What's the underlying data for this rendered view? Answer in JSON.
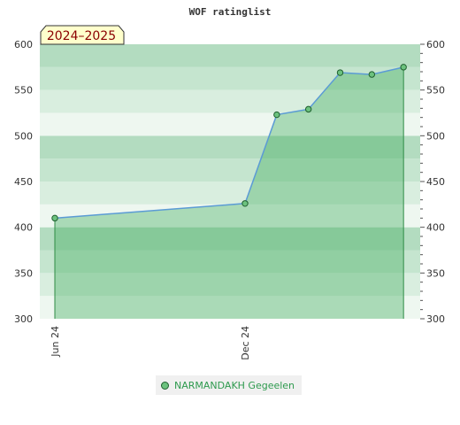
{
  "chart_data": {
    "type": "area",
    "title": "WOF ratinglist",
    "badge": "2024–2025",
    "ylim": [
      300,
      600
    ],
    "y_ticks": [
      300,
      350,
      400,
      450,
      500,
      550,
      600
    ],
    "y_tick_labels": [
      "300",
      "350",
      "400",
      "450",
      "500",
      "550",
      "600"
    ],
    "x_tick_labels": [
      "Jun 24",
      "Dec 24"
    ],
    "legend_position": "bottom-center",
    "series": [
      {
        "name": "NARMANDAKH Gegeelen",
        "color": "#5b9bd5",
        "marker_color": "#6cc27e",
        "points": [
          {
            "x": "2024-06",
            "y": 410
          },
          {
            "x": "2024-12",
            "y": 426
          },
          {
            "x": "2025-01",
            "y": 523
          },
          {
            "x": "2025-02",
            "y": 529
          },
          {
            "x": "2025-03",
            "y": 569
          },
          {
            "x": "2025-04",
            "y": 567
          },
          {
            "x": "2025-05",
            "y": 575
          }
        ]
      }
    ]
  }
}
